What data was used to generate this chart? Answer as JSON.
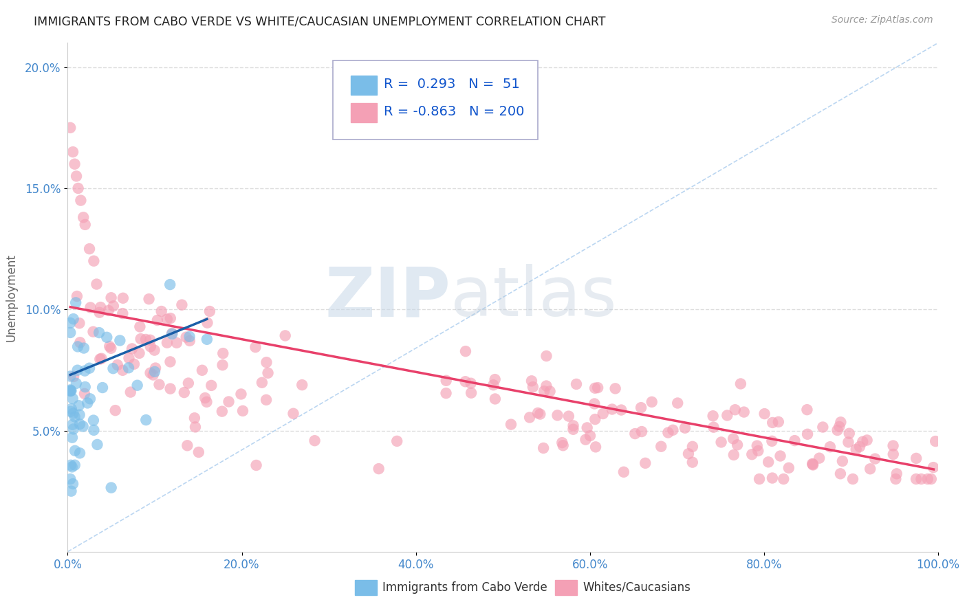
{
  "title": "IMMIGRANTS FROM CABO VERDE VS WHITE/CAUCASIAN UNEMPLOYMENT CORRELATION CHART",
  "source": "Source: ZipAtlas.com",
  "ylabel": "Unemployment",
  "xlim": [
    0,
    1.0
  ],
  "ylim": [
    0,
    0.21
  ],
  "xticks": [
    0.0,
    0.2,
    0.4,
    0.6,
    0.8,
    1.0
  ],
  "xticklabels": [
    "0.0%",
    "20.0%",
    "40.0%",
    "60.0%",
    "80.0%",
    "100.0%"
  ],
  "yticks": [
    0.05,
    0.1,
    0.15,
    0.2
  ],
  "yticklabels": [
    "5.0%",
    "10.0%",
    "15.0%",
    "20.0%"
  ],
  "blue_R": 0.293,
  "blue_N": 51,
  "pink_R": -0.863,
  "pink_N": 200,
  "blue_color": "#7abde8",
  "pink_color": "#f4a0b5",
  "blue_line_color": "#1a5fa8",
  "pink_line_color": "#e8406a",
  "diag_line_color": "#aaccee",
  "legend_label_blue": "Immigrants from Cabo Verde",
  "legend_label_pink": "Whites/Caucasians",
  "watermark_zip": "ZIP",
  "watermark_atlas": "atlas",
  "background_color": "#ffffff",
  "grid_color": "#dddddd",
  "title_color": "#333333",
  "tick_color": "#4488cc",
  "blue_trend_x": [
    0.003,
    0.16
  ],
  "blue_trend_y": [
    0.073,
    0.096
  ],
  "pink_trend_x": [
    0.003,
    0.995
  ],
  "pink_trend_y": [
    0.101,
    0.034
  ]
}
